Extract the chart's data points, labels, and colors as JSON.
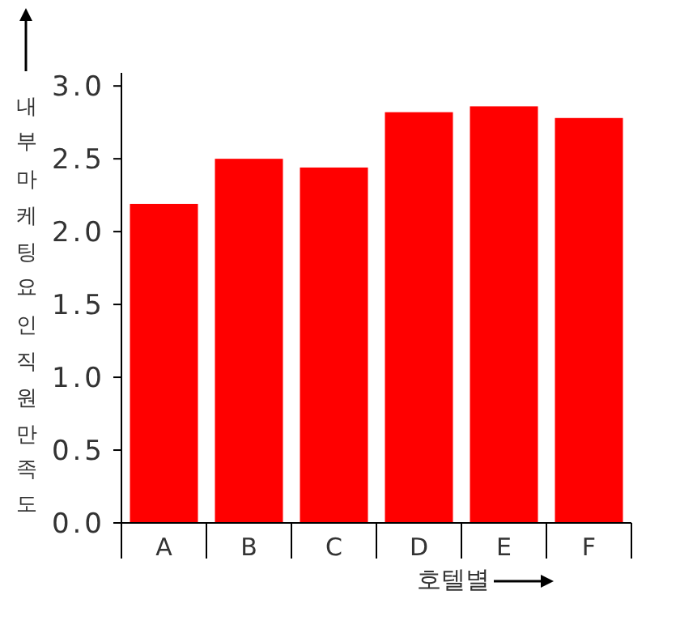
{
  "chart_data": {
    "type": "bar",
    "xlabel": "호텔별",
    "ylabel": "내부마케팅요인직원만족도",
    "categories": [
      "A",
      "B",
      "C",
      "D",
      "E",
      "F"
    ],
    "values": [
      2.19,
      2.5,
      2.44,
      2.82,
      2.86,
      2.78
    ],
    "color": "#ff0000",
    "ylim": [
      0,
      3.09
    ],
    "yticks": [
      {
        "value": 0,
        "label": "0.0"
      },
      {
        "value": 0.5,
        "label": "0.5"
      },
      {
        "value": 1,
        "label": "1.0"
      },
      {
        "value": 1.5,
        "label": "1.5"
      },
      {
        "value": 2,
        "label": "2.0"
      },
      {
        "value": 2.5,
        "label": "2.5"
      },
      {
        "value": 3,
        "label": "3.0"
      }
    ],
    "grid": false
  }
}
